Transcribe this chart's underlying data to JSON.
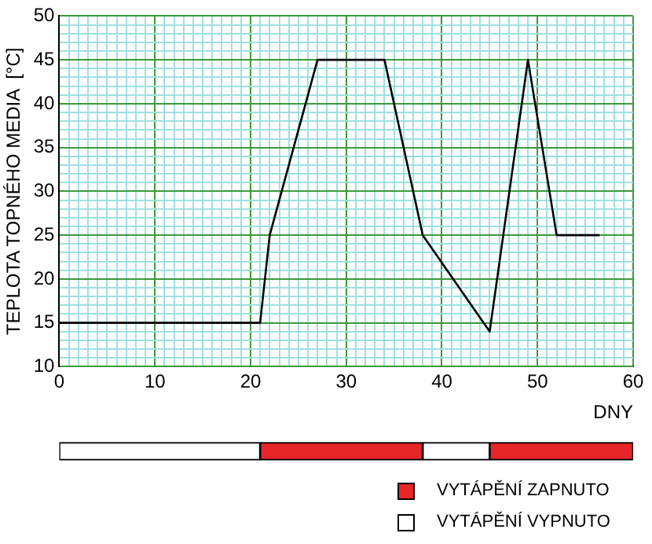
{
  "chart_data": [
    {
      "type": "line",
      "xlabel": "DNY",
      "ylabel": "TEPLOTA TOPNÉHO MEDIA  [°C]",
      "series": [
        {
          "color": "#000000",
          "x": [
            0,
            21,
            22,
            27,
            34,
            38,
            45,
            49,
            52,
            56.5
          ],
          "values": [
            15,
            15,
            25,
            45,
            45,
            25,
            14,
            45,
            25,
            25
          ]
        }
      ],
      "xlim": [
        0,
        60
      ],
      "ylim": [
        10,
        50
      ],
      "xticks": [
        0,
        {
          "value": 1,
          "label": null
        },
        {
          "value": 2,
          "label": null
        },
        {
          "value": 3,
          "label": null
        },
        {
          "value": 4,
          "label": null
        },
        {
          "value": 5,
          "label": null
        },
        {
          "value": 6,
          "label": null
        },
        {
          "value": 7,
          "label": null
        },
        {
          "value": 8,
          "label": null
        },
        {
          "value": 9,
          "label": null
        },
        10,
        {
          "value": 11,
          "label": null
        },
        {
          "value": 12,
          "label": null
        },
        {
          "value": 13,
          "label": null
        },
        {
          "value": 14,
          "label": null
        },
        {
          "value": 15,
          "label": null
        },
        {
          "value": 16,
          "label": null
        },
        {
          "value": 17,
          "label": null
        },
        {
          "value": 18,
          "label": null
        },
        {
          "value": 19,
          "label": null
        },
        20,
        {
          "value": 21,
          "label": null
        },
        {
          "value": 22,
          "label": null
        },
        {
          "value": 23,
          "label": null
        },
        {
          "value": 24,
          "label": null
        },
        {
          "value": 25,
          "label": null
        },
        {
          "value": 26,
          "label": null
        },
        {
          "value": 27,
          "label": null
        },
        {
          "value": 28,
          "label": null
        },
        {
          "value": 29,
          "label": null
        },
        30,
        {
          "value": 31,
          "label": null
        },
        {
          "value": 32,
          "label": null
        },
        {
          "value": 33,
          "label": null
        },
        {
          "value": 34,
          "label": null
        },
        {
          "value": 35,
          "label": null
        },
        {
          "value": 36,
          "label": null
        },
        {
          "value": 37,
          "label": null
        },
        {
          "value": 38,
          "label": null
        },
        {
          "value": 39,
          "label": null
        },
        40,
        {
          "value": 41,
          "label": null
        },
        {
          "value": 42,
          "label": null
        },
        {
          "value": 43,
          "label": null
        },
        {
          "value": 44,
          "label": null
        },
        {
          "value": 45,
          "label": null
        },
        {
          "value": 46,
          "label": null
        },
        {
          "value": 47,
          "label": null
        },
        {
          "value": 48,
          "label": null
        },
        {
          "value": 49,
          "label": null
        },
        50,
        {
          "value": 51,
          "label": null
        },
        {
          "value": 52,
          "label": null
        },
        {
          "value": 53,
          "label": null
        },
        {
          "value": 54,
          "label": null
        },
        {
          "value": 55,
          "label": null
        },
        {
          "value": 56,
          "label": null
        },
        {
          "value": 57,
          "label": null
        },
        {
          "value": 58,
          "label": null
        },
        {
          "value": 59,
          "label": null
        },
        60
      ],
      "yticks": [
        10,
        {
          "value": 11,
          "label": null
        },
        {
          "value": 12,
          "label": null
        },
        {
          "value": 13,
          "label": null
        },
        {
          "value": 14,
          "label": null
        },
        15,
        {
          "value": 16,
          "label": null
        },
        {
          "value": 17,
          "label": null
        },
        {
          "value": 18,
          "label": null
        },
        {
          "value": 19,
          "label": null
        },
        20,
        {
          "value": 21,
          "label": null
        },
        {
          "value": 22,
          "label": null
        },
        {
          "value": 23,
          "label": null
        },
        {
          "value": 24,
          "label": null
        },
        25,
        {
          "value": 26,
          "label": null
        },
        {
          "value": 27,
          "label": null
        },
        {
          "value": 28,
          "label": null
        },
        {
          "value": 29,
          "label": null
        },
        30,
        {
          "value": 31,
          "label": null
        },
        {
          "value": 32,
          "label": null
        },
        {
          "value": 33,
          "label": null
        },
        {
          "value": 34,
          "label": null
        },
        35,
        {
          "value": 36,
          "label": null
        },
        {
          "value": 37,
          "label": null
        },
        {
          "value": 38,
          "label": null
        },
        {
          "value": 39,
          "label": null
        },
        40,
        {
          "value": 41,
          "label": null
        },
        {
          "value": 42,
          "label": null
        },
        {
          "value": 43,
          "label": null
        },
        {
          "value": 44,
          "label": null
        },
        45,
        {
          "value": 46,
          "label": null
        },
        {
          "value": 47,
          "label": null
        },
        {
          "value": 48,
          "label": null
        },
        {
          "value": 49,
          "label": null
        },
        50
      ],
      "grid": true,
      "marker": "none",
      "line_style": "solid"
    },
    {
      "type": "bar",
      "orientation": "horizontal",
      "stacked": true,
      "categories": [
        null
      ],
      "series": [
        {
          "name": "VYTÁPĚNÍ VYPNUTO",
          "color": "#ffffff",
          "values": [
            21
          ]
        },
        {
          "name": "VYTÁPĚNÍ ZAPNUTO",
          "color": "#e8262a",
          "values": [
            17
          ]
        },
        {
          "color": "#ffffff",
          "values": [
            7
          ]
        },
        {
          "color": "#e8262a",
          "values": [
            15
          ]
        }
      ],
      "xlim": [
        0,
        60
      ],
      "tick_labels": false,
      "legend": "bottom right"
    }
  ]
}
